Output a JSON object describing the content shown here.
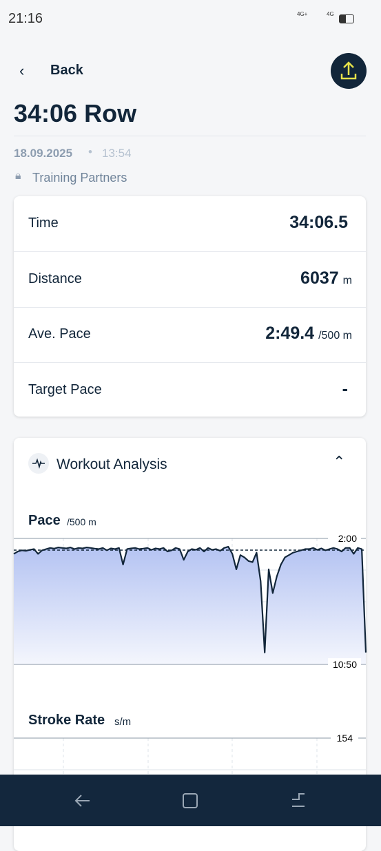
{
  "status_bar": {
    "time": "21:16",
    "net1": "4G+",
    "net2": "4G"
  },
  "header": {
    "back": "Back",
    "title": "34:06 Row",
    "date": "18.09.2025",
    "time": "13:54",
    "visibility": "Training Partners"
  },
  "stats": [
    {
      "label": "Time",
      "value": "34:06.5"
    },
    {
      "label": "Distance",
      "value": "6037",
      "unit": "m"
    },
    {
      "label": "Ave. Pace",
      "value": "2:49.4",
      "unit": "/500 m"
    },
    {
      "label": "Target Pace",
      "value": "-"
    }
  ],
  "analysis": {
    "title": "Workout Analysis",
    "pace": {
      "title": "Pace",
      "unit": "/500 m",
      "ylim": [
        120,
        650
      ],
      "yticks": [
        {
          "value": 120,
          "label": "2:00"
        },
        {
          "value": 650,
          "label": "10:50"
        }
      ],
      "average": 169.4,
      "values": [
        185,
        175,
        170,
        172,
        168,
        165,
        185,
        170,
        165,
        160,
        163,
        158,
        160,
        162,
        158,
        165,
        160,
        162,
        158,
        160,
        163,
        165,
        160,
        170,
        162,
        165,
        160,
        230,
        165,
        162,
        160,
        165,
        163,
        160,
        168,
        162,
        165,
        160,
        175,
        170,
        160,
        165,
        210,
        175,
        165,
        168,
        160,
        175,
        160,
        168,
        165,
        172,
        160,
        155,
        185,
        250,
        190,
        200,
        215,
        220,
        180,
        300,
        600,
        250,
        350,
        280,
        230,
        200,
        190,
        180,
        175,
        170,
        165,
        165,
        160,
        168,
        162,
        170,
        165,
        160,
        165,
        175,
        160,
        160,
        185,
        160,
        165,
        600
      ]
    },
    "stroke": {
      "title": "Stroke Rate",
      "unit": "s/m",
      "yticks": [
        154
      ]
    }
  }
}
